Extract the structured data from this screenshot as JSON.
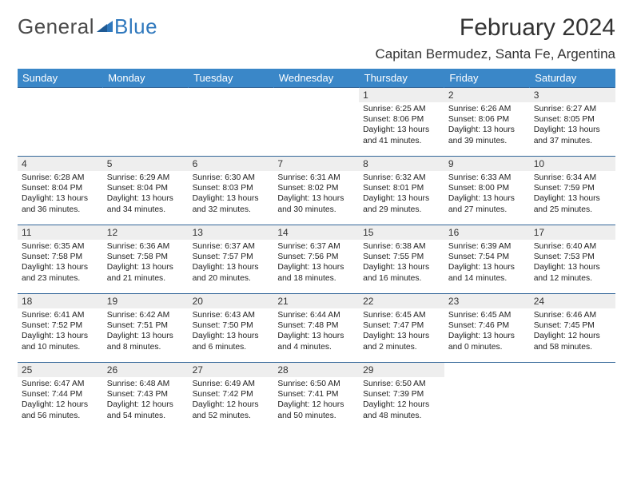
{
  "logo": {
    "text_a": "General",
    "text_b": "Blue"
  },
  "title": "February 2024",
  "location": "Capitan Bermudez, Santa Fe, Argentina",
  "colors": {
    "header_bg": "#3a87c8",
    "header_fg": "#ffffff",
    "daynum_bg": "#eeeeee",
    "cell_border": "#336699",
    "logo_gray": "#4a4a4a",
    "logo_blue": "#2f78bd"
  },
  "typography": {
    "title_fontsize": 30,
    "location_fontsize": 17,
    "weekday_fontsize": 13,
    "daynum_fontsize": 12,
    "body_fontsize": 10.3
  },
  "weekdays": [
    "Sunday",
    "Monday",
    "Tuesday",
    "Wednesday",
    "Thursday",
    "Friday",
    "Saturday"
  ],
  "weeks": [
    [
      null,
      null,
      null,
      null,
      {
        "d": "1",
        "sr": "6:25 AM",
        "ss": "8:06 PM",
        "dl": "13 hours and 41 minutes."
      },
      {
        "d": "2",
        "sr": "6:26 AM",
        "ss": "8:06 PM",
        "dl": "13 hours and 39 minutes."
      },
      {
        "d": "3",
        "sr": "6:27 AM",
        "ss": "8:05 PM",
        "dl": "13 hours and 37 minutes."
      }
    ],
    [
      {
        "d": "4",
        "sr": "6:28 AM",
        "ss": "8:04 PM",
        "dl": "13 hours and 36 minutes."
      },
      {
        "d": "5",
        "sr": "6:29 AM",
        "ss": "8:04 PM",
        "dl": "13 hours and 34 minutes."
      },
      {
        "d": "6",
        "sr": "6:30 AM",
        "ss": "8:03 PM",
        "dl": "13 hours and 32 minutes."
      },
      {
        "d": "7",
        "sr": "6:31 AM",
        "ss": "8:02 PM",
        "dl": "13 hours and 30 minutes."
      },
      {
        "d": "8",
        "sr": "6:32 AM",
        "ss": "8:01 PM",
        "dl": "13 hours and 29 minutes."
      },
      {
        "d": "9",
        "sr": "6:33 AM",
        "ss": "8:00 PM",
        "dl": "13 hours and 27 minutes."
      },
      {
        "d": "10",
        "sr": "6:34 AM",
        "ss": "7:59 PM",
        "dl": "13 hours and 25 minutes."
      }
    ],
    [
      {
        "d": "11",
        "sr": "6:35 AM",
        "ss": "7:58 PM",
        "dl": "13 hours and 23 minutes."
      },
      {
        "d": "12",
        "sr": "6:36 AM",
        "ss": "7:58 PM",
        "dl": "13 hours and 21 minutes."
      },
      {
        "d": "13",
        "sr": "6:37 AM",
        "ss": "7:57 PM",
        "dl": "13 hours and 20 minutes."
      },
      {
        "d": "14",
        "sr": "6:37 AM",
        "ss": "7:56 PM",
        "dl": "13 hours and 18 minutes."
      },
      {
        "d": "15",
        "sr": "6:38 AM",
        "ss": "7:55 PM",
        "dl": "13 hours and 16 minutes."
      },
      {
        "d": "16",
        "sr": "6:39 AM",
        "ss": "7:54 PM",
        "dl": "13 hours and 14 minutes."
      },
      {
        "d": "17",
        "sr": "6:40 AM",
        "ss": "7:53 PM",
        "dl": "13 hours and 12 minutes."
      }
    ],
    [
      {
        "d": "18",
        "sr": "6:41 AM",
        "ss": "7:52 PM",
        "dl": "13 hours and 10 minutes."
      },
      {
        "d": "19",
        "sr": "6:42 AM",
        "ss": "7:51 PM",
        "dl": "13 hours and 8 minutes."
      },
      {
        "d": "20",
        "sr": "6:43 AM",
        "ss": "7:50 PM",
        "dl": "13 hours and 6 minutes."
      },
      {
        "d": "21",
        "sr": "6:44 AM",
        "ss": "7:48 PM",
        "dl": "13 hours and 4 minutes."
      },
      {
        "d": "22",
        "sr": "6:45 AM",
        "ss": "7:47 PM",
        "dl": "13 hours and 2 minutes."
      },
      {
        "d": "23",
        "sr": "6:45 AM",
        "ss": "7:46 PM",
        "dl": "13 hours and 0 minutes."
      },
      {
        "d": "24",
        "sr": "6:46 AM",
        "ss": "7:45 PM",
        "dl": "12 hours and 58 minutes."
      }
    ],
    [
      {
        "d": "25",
        "sr": "6:47 AM",
        "ss": "7:44 PM",
        "dl": "12 hours and 56 minutes."
      },
      {
        "d": "26",
        "sr": "6:48 AM",
        "ss": "7:43 PM",
        "dl": "12 hours and 54 minutes."
      },
      {
        "d": "27",
        "sr": "6:49 AM",
        "ss": "7:42 PM",
        "dl": "12 hours and 52 minutes."
      },
      {
        "d": "28",
        "sr": "6:50 AM",
        "ss": "7:41 PM",
        "dl": "12 hours and 50 minutes."
      },
      {
        "d": "29",
        "sr": "6:50 AM",
        "ss": "7:39 PM",
        "dl": "12 hours and 48 minutes."
      },
      null,
      null
    ]
  ],
  "labels": {
    "sunrise": "Sunrise:",
    "sunset": "Sunset:",
    "daylight": "Daylight:"
  }
}
